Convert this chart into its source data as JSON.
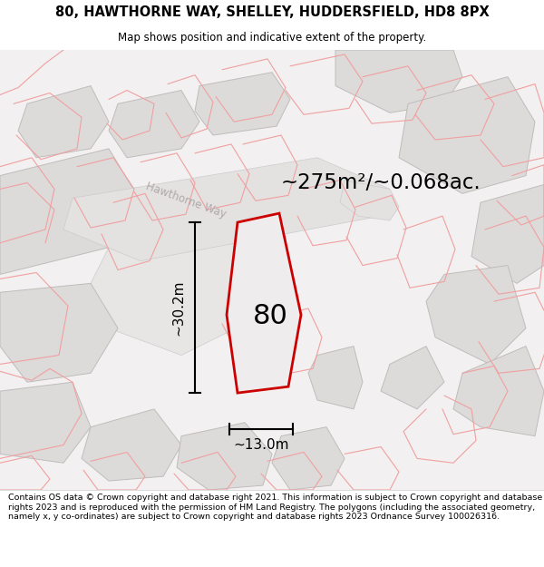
{
  "title_line1": "80, HAWTHORNE WAY, SHELLEY, HUDDERSFIELD, HD8 8PX",
  "title_line2": "Map shows position and indicative extent of the property.",
  "area_label": "~275m²/~0.068ac.",
  "number_label": "80",
  "dim_vertical": "~30.2m",
  "dim_horizontal": "~13.0m",
  "street_label": "Hawthorne Way",
  "footer_text": "Contains OS data © Crown copyright and database right 2021. This information is subject to Crown copyright and database rights 2023 and is reproduced with the permission of HM Land Registry. The polygons (including the associated geometry, namely x, y co-ordinates) are subject to Crown copyright and database rights 2023 Ordnance Survey 100026316.",
  "map_bg": "#f2f0f0",
  "plot_fill": "#eeecec",
  "plot_outline": "#cc0000",
  "block_fill": "#dddada",
  "block_edge": "#c0bcbc",
  "red_line": "#f0a0a0",
  "white": "#ffffff",
  "road_label_color": "#b0aaaa",
  "street_rotation": -20
}
